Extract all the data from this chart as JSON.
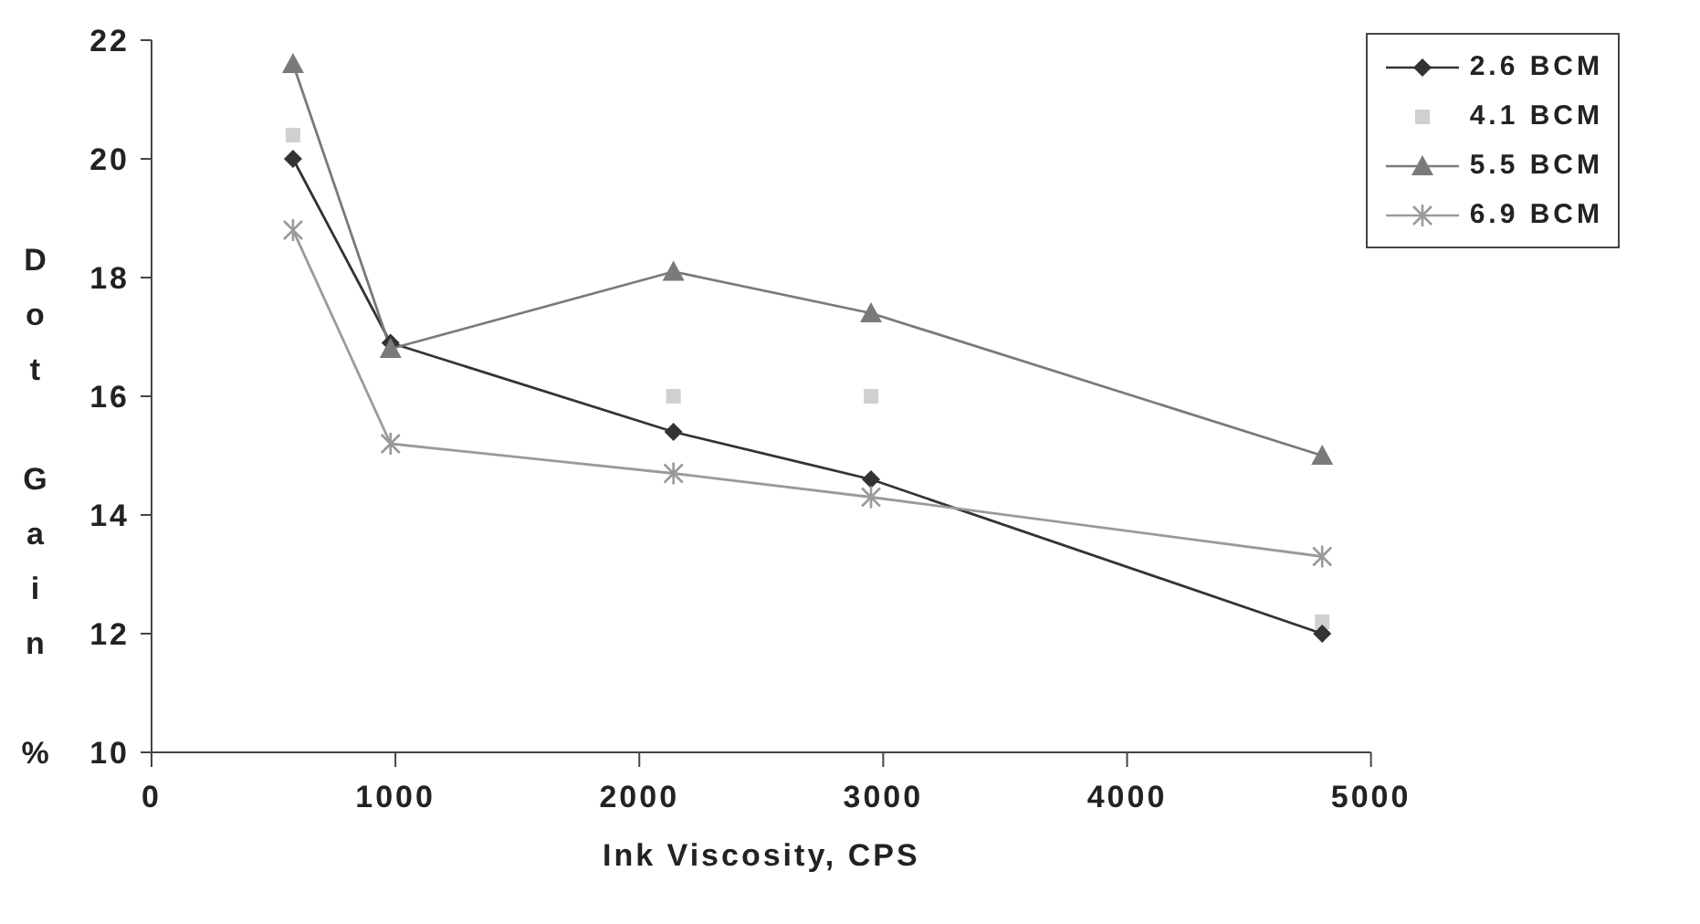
{
  "chart_data": {
    "type": "line",
    "xlabel": "Ink Viscosity, CPS",
    "ylabel": "Dot Gain %",
    "xlim": [
      0,
      5000
    ],
    "xticks": [
      0,
      1000,
      2000,
      3000,
      4000,
      5000
    ],
    "ylim": [
      10,
      22
    ],
    "yticks": [
      10,
      12,
      14,
      16,
      18,
      20,
      22
    ],
    "x": [
      580,
      980,
      2140,
      2950,
      4800
    ],
    "series": [
      {
        "name": "2.6 BCM",
        "color": "#333333",
        "marker": "diamond",
        "values": [
          20.0,
          16.9,
          15.4,
          14.6,
          12.0
        ]
      },
      {
        "name": "4.1 BCM",
        "type": "scatter",
        "color": "#d0d0d0",
        "marker": "square",
        "values": [
          20.4,
          null,
          16.0,
          16.0,
          12.2
        ]
      },
      {
        "name": "5.5 BCM",
        "color": "#7a7a7a",
        "marker": "triangle",
        "values": [
          21.6,
          16.8,
          18.1,
          17.4,
          15.0
        ]
      },
      {
        "name": "6.9 BCM",
        "color": "#9a9a9a",
        "marker": "cross",
        "values": [
          18.8,
          15.2,
          14.7,
          14.3,
          13.3
        ]
      }
    ],
    "legend": "top right",
    "grid": false
  }
}
